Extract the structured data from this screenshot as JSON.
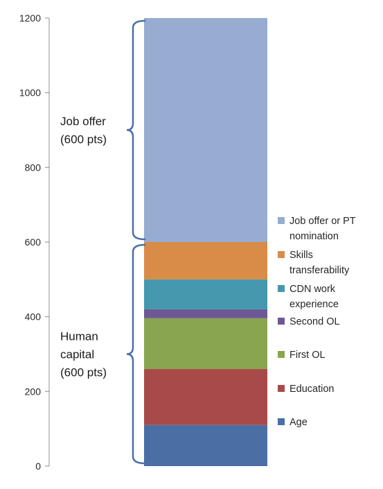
{
  "chart_data": {
    "type": "bar",
    "stacked": true,
    "categories": [
      ""
    ],
    "ylim": [
      0,
      1200
    ],
    "yticks": [
      0,
      200,
      400,
      600,
      800,
      1000,
      1200
    ],
    "grid": false,
    "legend_placement": "right",
    "series": [
      {
        "name": "Age",
        "lines": [
          "Age"
        ],
        "values": [
          110
        ],
        "color": "#4a6fa5"
      },
      {
        "name": "Education",
        "lines": [
          "Education"
        ],
        "values": [
          150
        ],
        "color": "#a94a4a"
      },
      {
        "name": "First OL",
        "lines": [
          "First OL"
        ],
        "values": [
          136
        ],
        "color": "#8aa550"
      },
      {
        "name": "Second OL",
        "lines": [
          "Second OL"
        ],
        "values": [
          24
        ],
        "color": "#6e5894"
      },
      {
        "name": "CDN work experience",
        "lines": [
          "CDN work",
          "experience"
        ],
        "values": [
          80
        ],
        "color": "#4598ad"
      },
      {
        "name": "Skills transferability",
        "lines": [
          "Skills",
          "transferability"
        ],
        "values": [
          100
        ],
        "color": "#d98c47"
      },
      {
        "name": "Job offer or PT nomination",
        "lines": [
          "Job offer or PT",
          "nomination"
        ],
        "values": [
          600
        ],
        "color": "#96acd0"
      }
    ],
    "annotations": [
      {
        "lines": [
          "Job offer",
          "(600 pts)"
        ],
        "range": [
          600,
          1200
        ]
      },
      {
        "lines": [
          "Human",
          "capital",
          "(600 pts)"
        ],
        "range": [
          0,
          600
        ]
      }
    ]
  }
}
